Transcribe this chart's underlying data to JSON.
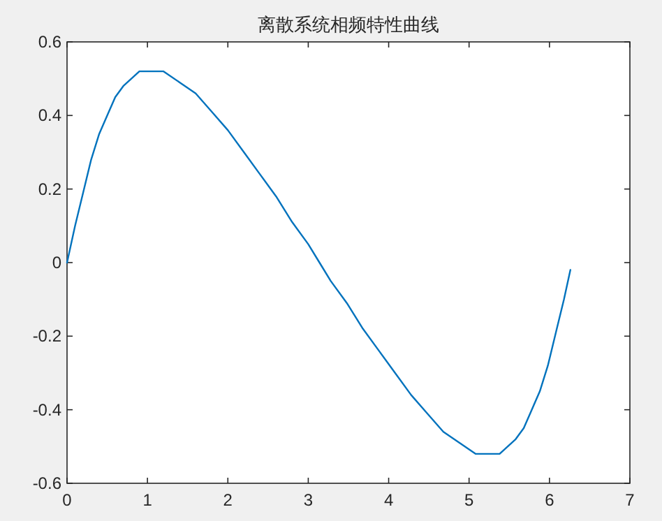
{
  "chart_data": {
    "type": "line",
    "title": "离散系统相频特性曲线",
    "color": "#0072bd",
    "x": [
      0,
      0.1,
      0.2,
      0.3,
      0.4,
      0.5,
      0.6,
      0.7,
      0.8,
      0.9,
      1.0,
      1.05,
      1.2,
      1.4,
      1.6,
      1.8,
      2.0,
      2.2,
      2.4,
      2.6,
      2.8,
      3.0,
      3.14,
      3.28,
      3.48,
      3.68,
      3.88,
      4.08,
      4.28,
      4.48,
      4.68,
      4.88,
      5.08,
      5.23,
      5.28,
      5.38,
      5.48,
      5.58,
      5.68,
      5.78,
      5.88,
      5.98,
      6.08,
      6.18,
      6.26
    ],
    "values": [
      0,
      0.1,
      0.19,
      0.28,
      0.35,
      0.4,
      0.45,
      0.48,
      0.5,
      0.52,
      0.52,
      0.52,
      0.52,
      0.49,
      0.46,
      0.41,
      0.36,
      0.3,
      0.24,
      0.18,
      0.11,
      0.05,
      0,
      -0.05,
      -0.11,
      -0.18,
      -0.24,
      -0.3,
      -0.36,
      -0.41,
      -0.46,
      -0.49,
      -0.52,
      -0.52,
      -0.52,
      -0.52,
      -0.5,
      -0.48,
      -0.45,
      -0.4,
      -0.35,
      -0.28,
      -0.19,
      -0.1,
      -0.02
    ],
    "xlim": [
      0,
      7
    ],
    "ylim": [
      -0.6,
      0.6
    ],
    "xticks": [
      0,
      1,
      2,
      3,
      4,
      5,
      6,
      7
    ],
    "yticks": [
      -0.6,
      -0.4,
      -0.2,
      0,
      0.2,
      0.4,
      0.6
    ]
  }
}
